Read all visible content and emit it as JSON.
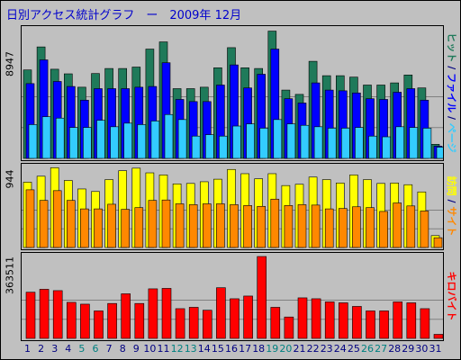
{
  "title": "日別アクセス統計グラフ　ー　2009年 12月",
  "colors": {
    "background": "#c0c0c0",
    "title": "#0000cc",
    "hits_outer": "#1f7a5a",
    "files_mid": "#0000ff",
    "pages_inner": "#33ccff",
    "visits_outer": "#ffff00",
    "sites_inner": "#ff8800",
    "kbytes": "#ff0000",
    "weekend_label": "#008080",
    "weekday_label": "#000080"
  },
  "right_labels": {
    "top": [
      {
        "text": "ヒット",
        "color": "#1f7a5a"
      },
      {
        "text": " / ",
        "color": "#000080"
      },
      {
        "text": "ファイル",
        "color": "#0000ff"
      },
      {
        "text": " / ",
        "color": "#000080"
      },
      {
        "text": "ページ",
        "color": "#33ccff"
      }
    ],
    "middle": [
      {
        "text": "訪問",
        "color": "#ffff00"
      },
      {
        "text": " / ",
        "color": "#000080"
      },
      {
        "text": "サイト",
        "color": "#ff8800"
      }
    ],
    "bottom": [
      {
        "text": "キロバイト",
        "color": "#ff0000"
      }
    ]
  },
  "chart_data": [
    {
      "type": "bar",
      "panel": "hits",
      "ymax_label": "8947",
      "ylim": [
        0,
        8947
      ],
      "categories": [
        "1",
        "2",
        "3",
        "4",
        "5",
        "6",
        "7",
        "8",
        "9",
        "10",
        "11",
        "12",
        "13",
        "14",
        "15",
        "16",
        "17",
        "18",
        "19",
        "20",
        "21",
        "22",
        "23",
        "24",
        "25",
        "26",
        "27",
        "28",
        "29",
        "30",
        "31"
      ],
      "weekend_days": [
        "5",
        "6",
        "12",
        "13",
        "19",
        "20",
        "26",
        "27"
      ],
      "series": [
        {
          "values": [
            6150,
            7750,
            6200,
            5880,
            4950,
            5900,
            6250,
            6250,
            6350,
            7600,
            8100,
            4850,
            4850,
            4950,
            6300,
            7700,
            6300,
            6250,
            8850,
            4750,
            4450,
            6750,
            5750,
            5750,
            5650,
            5100,
            5100,
            5250,
            5800,
            4900,
            980
          ]
        },
        {
          "values": [
            5200,
            6850,
            5350,
            5000,
            4050,
            4850,
            4850,
            4850,
            4950,
            5000,
            6650,
            4100,
            3950,
            3950,
            5100,
            6500,
            4900,
            5850,
            7600,
            4150,
            3850,
            5250,
            4750,
            4700,
            4550,
            4150,
            4100,
            4600,
            4850,
            4050,
            850
          ]
        },
        {
          "values": [
            2350,
            2900,
            2800,
            2150,
            2150,
            2650,
            2200,
            2450,
            2350,
            2600,
            3050,
            2700,
            1550,
            1650,
            1550,
            2250,
            2400,
            2100,
            2700,
            2400,
            2300,
            2200,
            2100,
            2100,
            2150,
            1550,
            1500,
            2200,
            2150,
            2100,
            780
          ]
        }
      ]
    },
    {
      "type": "bar",
      "panel": "visits",
      "ymax_label": "944",
      "ylim": [
        0,
        944
      ],
      "categories": [
        "1",
        "2",
        "3",
        "4",
        "5",
        "6",
        "7",
        "8",
        "9",
        "10",
        "11",
        "12",
        "13",
        "14",
        "15",
        "16",
        "17",
        "18",
        "19",
        "20",
        "21",
        "22",
        "23",
        "24",
        "25",
        "26",
        "27",
        "28",
        "29",
        "30",
        "31"
      ],
      "series": [
        {
          "values": [
            770,
            840,
            940,
            790,
            690,
            660,
            800,
            905,
            935,
            880,
            855,
            750,
            755,
            775,
            805,
            920,
            870,
            810,
            870,
            730,
            745,
            830,
            800,
            760,
            855,
            800,
            755,
            760,
            740,
            655,
            140
          ]
        },
        {
          "values": [
            680,
            555,
            670,
            555,
            455,
            455,
            510,
            450,
            470,
            555,
            560,
            515,
            505,
            515,
            515,
            505,
            495,
            485,
            570,
            495,
            505,
            500,
            455,
            460,
            480,
            470,
            425,
            525,
            490,
            430,
            115
          ]
        }
      ]
    },
    {
      "type": "bar",
      "panel": "kbytes",
      "ymax_label": "363511",
      "ylim": [
        0,
        363511
      ],
      "categories": [
        "1",
        "2",
        "3",
        "4",
        "5",
        "6",
        "7",
        "8",
        "9",
        "10",
        "11",
        "12",
        "13",
        "14",
        "15",
        "16",
        "17",
        "18",
        "19",
        "20",
        "21",
        "22",
        "23",
        "24",
        "25",
        "26",
        "27",
        "28",
        "29",
        "30",
        "31"
      ],
      "series": [
        {
          "values": [
            205000,
            218000,
            212000,
            160000,
            152000,
            122000,
            155000,
            198000,
            155000,
            220000,
            222000,
            132000,
            138000,
            125000,
            225000,
            176000,
            188000,
            363511,
            138000,
            95000,
            180000,
            176000,
            162000,
            158000,
            142000,
            122000,
            122000,
            162000,
            158000,
            132000,
            18000
          ]
        }
      ]
    }
  ]
}
